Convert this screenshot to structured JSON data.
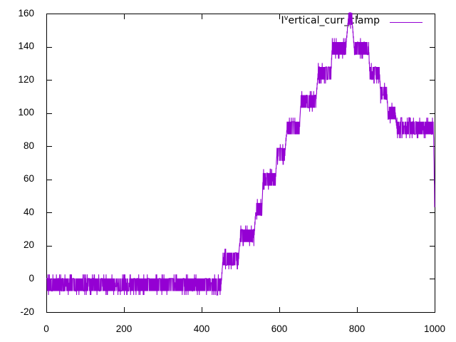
{
  "chart_data": {
    "type": "line",
    "title": "",
    "xlabel": "",
    "ylabel": "",
    "xlim": [
      0,
      1000
    ],
    "ylim": [
      -20,
      160
    ],
    "x_ticks": [
      0,
      200,
      400,
      600,
      800,
      1000
    ],
    "y_ticks": [
      -20,
      0,
      20,
      40,
      60,
      80,
      100,
      120,
      140,
      160
    ],
    "grid": false,
    "legend": {
      "position": "top-right",
      "label_pre": "I",
      "label_sup": "v",
      "label_post": "ertical_curr_clamp"
    },
    "series": [
      {
        "name": "Ivertical_curr_clamp",
        "color": "#9400d3",
        "noise_amplitude": 4.5,
        "segments": [
          [
            0,
            450,
            -3.5
          ],
          [
            455,
            495,
            12
          ],
          [
            500,
            535,
            26
          ],
          [
            540,
            555,
            42
          ],
          [
            558,
            590,
            60
          ],
          [
            594,
            614,
            75
          ],
          [
            620,
            652,
            91
          ],
          [
            656,
            694,
            107
          ],
          [
            700,
            733,
            124
          ],
          [
            736,
            771,
            139
          ],
          [
            778,
            787,
            157
          ],
          [
            793,
            830,
            139
          ],
          [
            833,
            858,
            124
          ],
          [
            861,
            877,
            112
          ],
          [
            880,
            898,
            100
          ],
          [
            903,
            997,
            91
          ],
          [
            1000,
            1000,
            47
          ]
        ]
      }
    ]
  }
}
